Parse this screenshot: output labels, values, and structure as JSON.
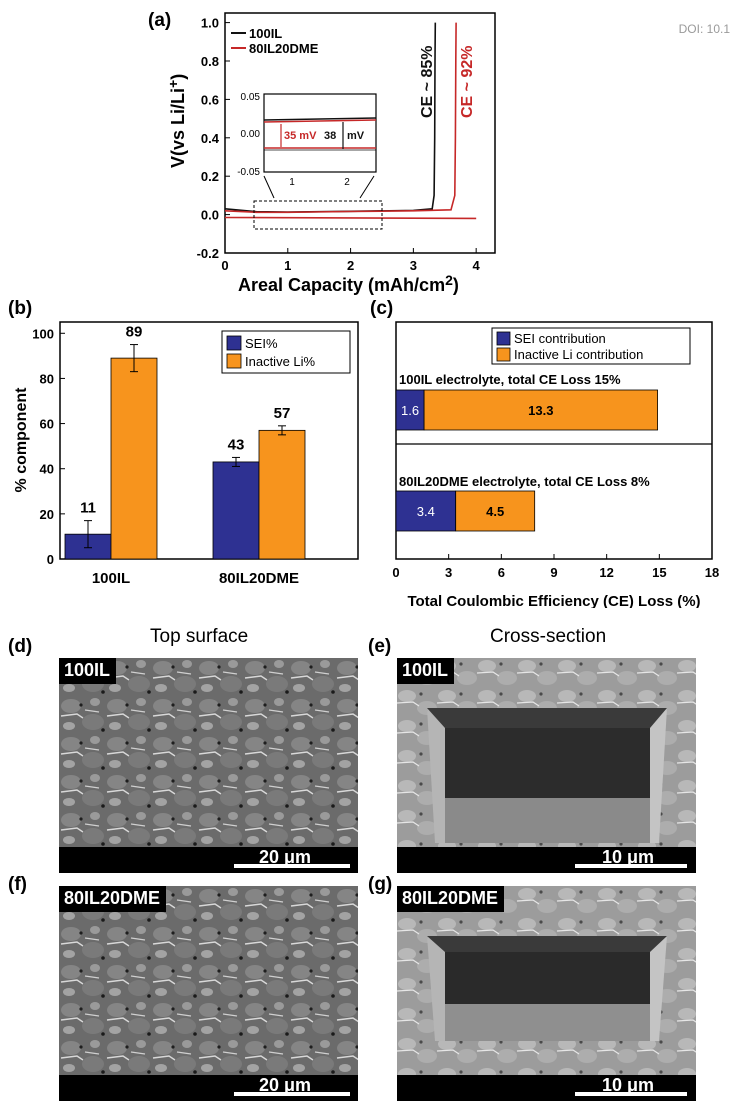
{
  "doi": "DOI: 10.1",
  "panels": {
    "a": "(a)",
    "b": "(b)",
    "c": "(c)",
    "d": "(d)",
    "e": "(e)",
    "f": "(f)",
    "g": "(g)"
  },
  "column_heads": {
    "left": "Top surface",
    "right": "Cross-section"
  },
  "chart_data": [
    {
      "id": "a",
      "type": "line",
      "xlabel": "Areal Capacity (mAh/cm",
      "xlabel_sup": "2",
      "xlabel_close": ")",
      "ylabel": "V(vs Li/Li",
      "ylabel_sup": "+",
      "ylabel_close": ")",
      "xlim": [
        0,
        4.3
      ],
      "ylim": [
        -0.2,
        1.05
      ],
      "xticks": [
        "0",
        "1",
        "2",
        "3",
        "4"
      ],
      "yticks": [
        "-0.2",
        "0.0",
        "0.2",
        "0.4",
        "0.6",
        "0.8",
        "1.0"
      ],
      "series": [
        {
          "name": "100IL",
          "color": "#111111",
          "x": [
            0,
            0.5,
            1.0,
            2.0,
            3.0,
            3.3,
            3.33,
            3.34,
            3.345,
            3.35
          ],
          "y": [
            0.03,
            0.015,
            0.013,
            0.017,
            0.022,
            0.03,
            0.1,
            0.4,
            0.8,
            1.0
          ]
        },
        {
          "name": "80IL20DME",
          "color": "#c62828",
          "x": [
            0,
            0.5,
            1.0,
            2.0,
            3.0,
            3.6,
            3.66,
            3.67,
            3.675,
            3.68
          ],
          "y": [
            0.02,
            0.012,
            0.012,
            0.016,
            0.02,
            0.025,
            0.1,
            0.4,
            0.8,
            1.0
          ]
        },
        {
          "name": "80IL20DME stripping",
          "color": "#c62828",
          "x": [
            0,
            4.0
          ],
          "y": [
            -0.015,
            -0.02
          ]
        }
      ],
      "annotations": [
        "CE ~ 85%",
        "CE ~ 92%"
      ],
      "inset": {
        "xticks": [
          "1",
          "2"
        ],
        "yticks": [
          "0.05",
          "0.00",
          "-0.05"
        ],
        "labels": [
          "35 mV",
          "38",
          "mV"
        ]
      }
    },
    {
      "id": "b",
      "type": "bar",
      "categories": [
        "100IL",
        "80IL20DME"
      ],
      "ylabel": "% component",
      "ylim": [
        0,
        105
      ],
      "yticks": [
        "0",
        "20",
        "40",
        "60",
        "80",
        "100"
      ],
      "series": [
        {
          "name": "SEI%",
          "color": "#2e3192",
          "values": [
            11,
            43
          ],
          "errors": [
            6,
            2
          ]
        },
        {
          "name": "Inactive Li%",
          "color": "#f7941d",
          "values": [
            89,
            57
          ],
          "errors": [
            6,
            2
          ]
        }
      ],
      "value_labels": [
        "11",
        "43",
        "89",
        "57"
      ]
    },
    {
      "id": "c",
      "type": "bar",
      "orientation": "horizontal-stacked",
      "xlabel": "Total Coulombic Efficiency (CE) Loss (%)",
      "xlim": [
        0,
        18
      ],
      "xticks": [
        "0",
        "3",
        "6",
        "9",
        "12",
        "15",
        "18"
      ],
      "series": [
        {
          "name": "SEI contribution",
          "color": "#2e3192",
          "values": [
            1.6,
            3.4
          ]
        },
        {
          "name": "Inactive Li contribution",
          "color": "#f7941d",
          "values": [
            13.3,
            4.5
          ]
        }
      ],
      "group_titles": [
        "100IL electrolyte, total CE Loss 15%",
        "80IL20DME electrolyte, total CE Loss 8%"
      ],
      "value_labels": [
        "1.6",
        "13.3",
        "3.4",
        "4.5"
      ]
    }
  ],
  "images": {
    "d": {
      "tag": "100IL",
      "scale": "20 μm"
    },
    "e": {
      "tag": "100IL",
      "scale": "10 μm"
    },
    "f": {
      "tag": "80IL20DME",
      "scale": "20 μm"
    },
    "g": {
      "tag": "80IL20DME",
      "scale": "10 μm"
    }
  }
}
